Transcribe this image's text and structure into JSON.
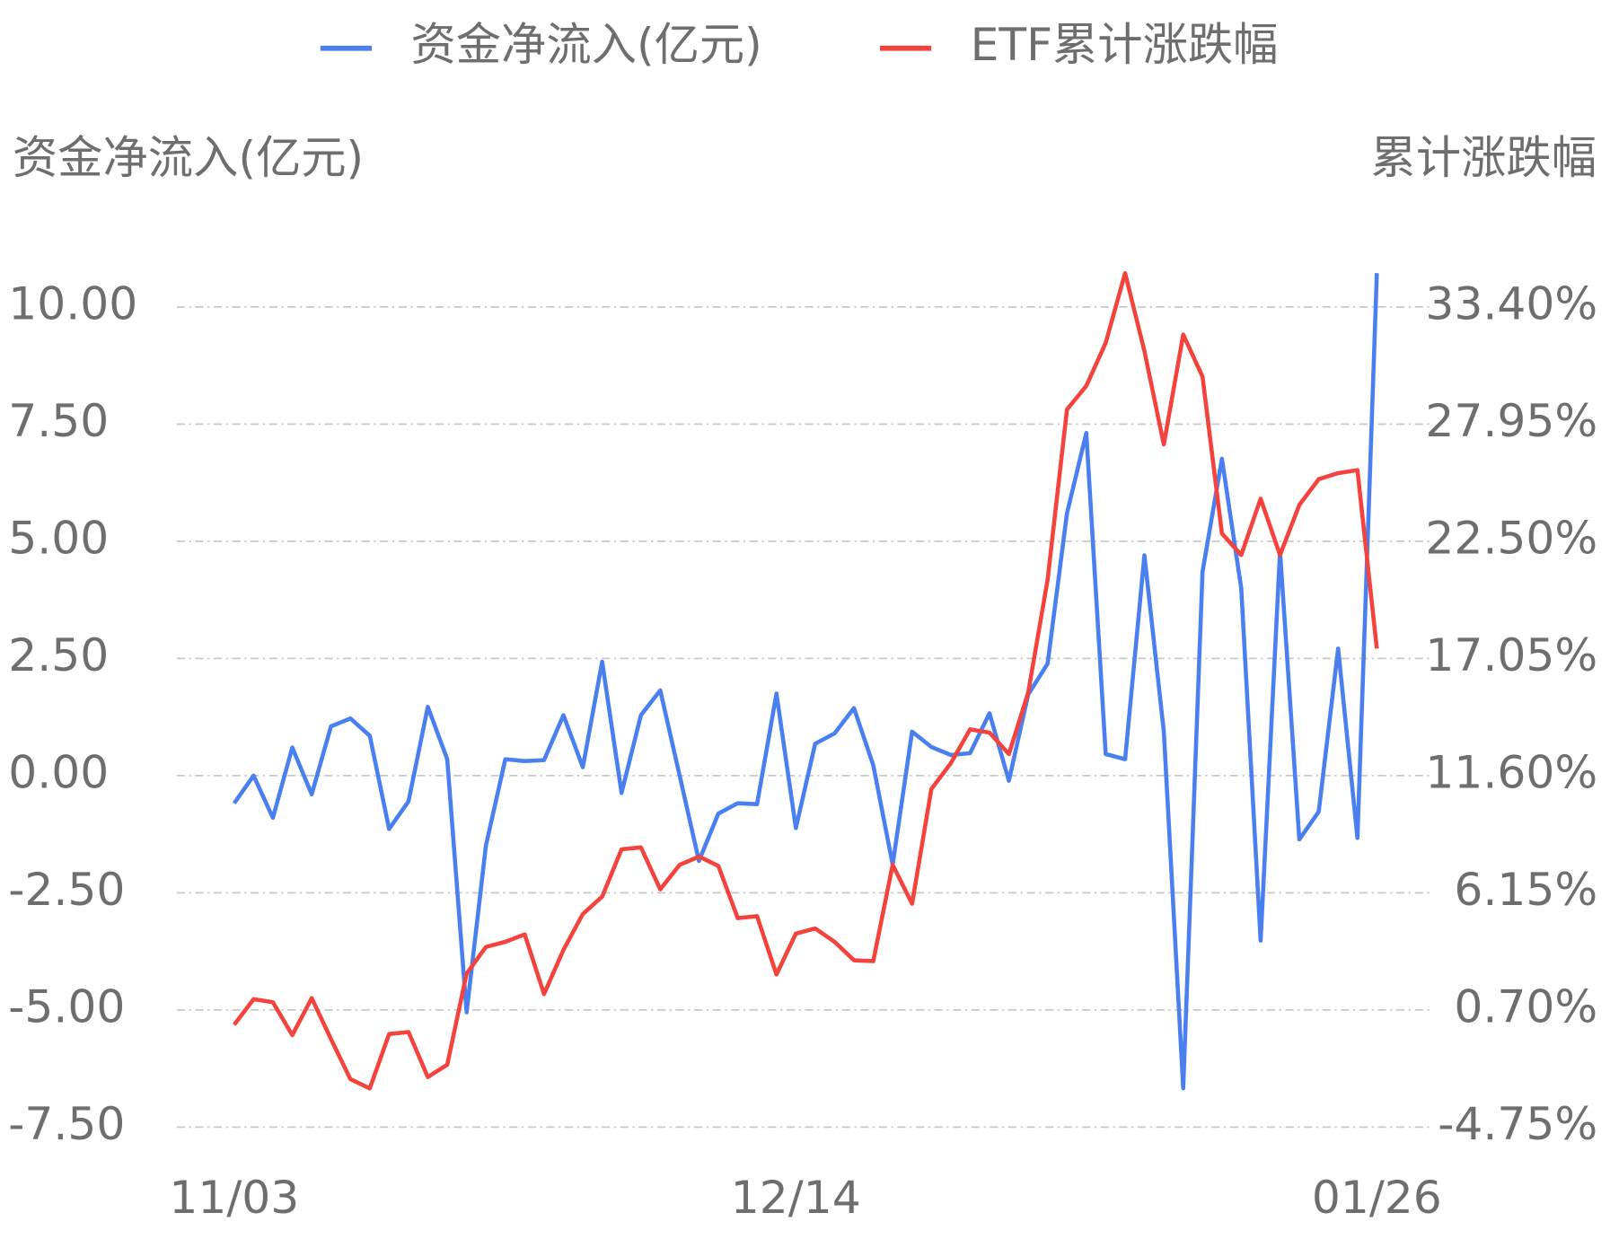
{
  "chart_data": {
    "type": "line",
    "y_label": "资金净流入(亿元)",
    "y2_label": "累计涨跌幅",
    "categories": [
      "11/03",
      null,
      null,
      null,
      null,
      null,
      null,
      null,
      null,
      null,
      null,
      null,
      null,
      null,
      null,
      null,
      null,
      null,
      null,
      null,
      null,
      null,
      null,
      null,
      null,
      null,
      null,
      null,
      null,
      "12/14",
      null,
      null,
      null,
      null,
      null,
      null,
      null,
      null,
      null,
      null,
      null,
      null,
      null,
      null,
      null,
      null,
      null,
      null,
      null,
      null,
      null,
      null,
      null,
      null,
      null,
      null,
      null,
      null,
      null,
      "01/26"
    ],
    "series": [
      {
        "name": "资金净流入(亿元)",
        "color": "#4a7ff0",
        "axis": "y",
        "values": [
          -0.59,
          0,
          -0.9,
          0.6,
          -0.4,
          1.05,
          1.22,
          0.85,
          -1.14,
          -0.55,
          1.47,
          0.35,
          -5.05,
          -1.49,
          0.35,
          0.31,
          0.33,
          1.29,
          0.18,
          2.43,
          -0.37,
          1.29,
          1.82,
          0,
          -1.82,
          -0.81,
          -0.59,
          -0.61,
          1.75,
          -1.12,
          0.68,
          0.9,
          1.44,
          0.22,
          -1.9,
          0.94,
          0.61,
          0.44,
          0.48,
          1.33,
          -0.11,
          1.73,
          2.39,
          5.6,
          7.31,
          0.46,
          0.35,
          4.7,
          0.94,
          -6.67,
          4.35,
          6.76,
          4.0,
          -3.52,
          4.79,
          -1.36,
          -0.77,
          2.71,
          -1.33,
          10.72
        ]
      },
      {
        "name": "ETF累计涨跌幅",
        "color": "#f4433c",
        "axis": "y2",
        "values": [
          0.01,
          1.2,
          1.06,
          -0.47,
          1.25,
          -0.66,
          -2.52,
          -2.95,
          -0.42,
          -0.33,
          -2.42,
          -1.85,
          2.39,
          3.63,
          3.87,
          4.21,
          1.44,
          3.49,
          5.16,
          5.97,
          8.17,
          8.26,
          6.31,
          7.45,
          7.83,
          7.4,
          4.97,
          5.06,
          2.35,
          4.25,
          4.49,
          3.87,
          3.01,
          2.97,
          7.45,
          5.64,
          10.98,
          12.17,
          13.75,
          13.6,
          12.6,
          15.46,
          20.71,
          28.63,
          29.73,
          31.73,
          34.97,
          31.35,
          27.0,
          32.11,
          30.16,
          22.86,
          21.86,
          24.48,
          21.86,
          24.19,
          25.39,
          25.67,
          25.81,
          17.51
        ]
      }
    ],
    "ylim": [
      -7.5,
      10
    ],
    "yticks": [
      {
        "value": -7.5,
        "label": "-7.50"
      },
      {
        "value": -5,
        "label": "-5.00"
      },
      {
        "value": -2.5,
        "label": "-2.50"
      },
      {
        "value": 0,
        "label": "0.00"
      },
      {
        "value": 2.5,
        "label": "2.50"
      },
      {
        "value": 5,
        "label": "5.00"
      },
      {
        "value": 7.5,
        "label": "7.50"
      },
      {
        "value": 10,
        "label": "10.00"
      }
    ],
    "y2lim": [
      -4.75,
      33.4
    ],
    "y2ticks": [
      {
        "value": -4.75,
        "label": "-4.75%"
      },
      {
        "value": 0.7,
        "label": "0.70%"
      },
      {
        "value": 6.15,
        "label": "6.15%"
      },
      {
        "value": 11.6,
        "label": "11.60%"
      },
      {
        "value": 17.05,
        "label": "17.05%"
      },
      {
        "value": 22.5,
        "label": "22.50%"
      },
      {
        "value": 27.95,
        "label": "27.95%"
      },
      {
        "value": 33.4,
        "label": "33.40%"
      }
    ],
    "grid": true,
    "legend": "top"
  }
}
